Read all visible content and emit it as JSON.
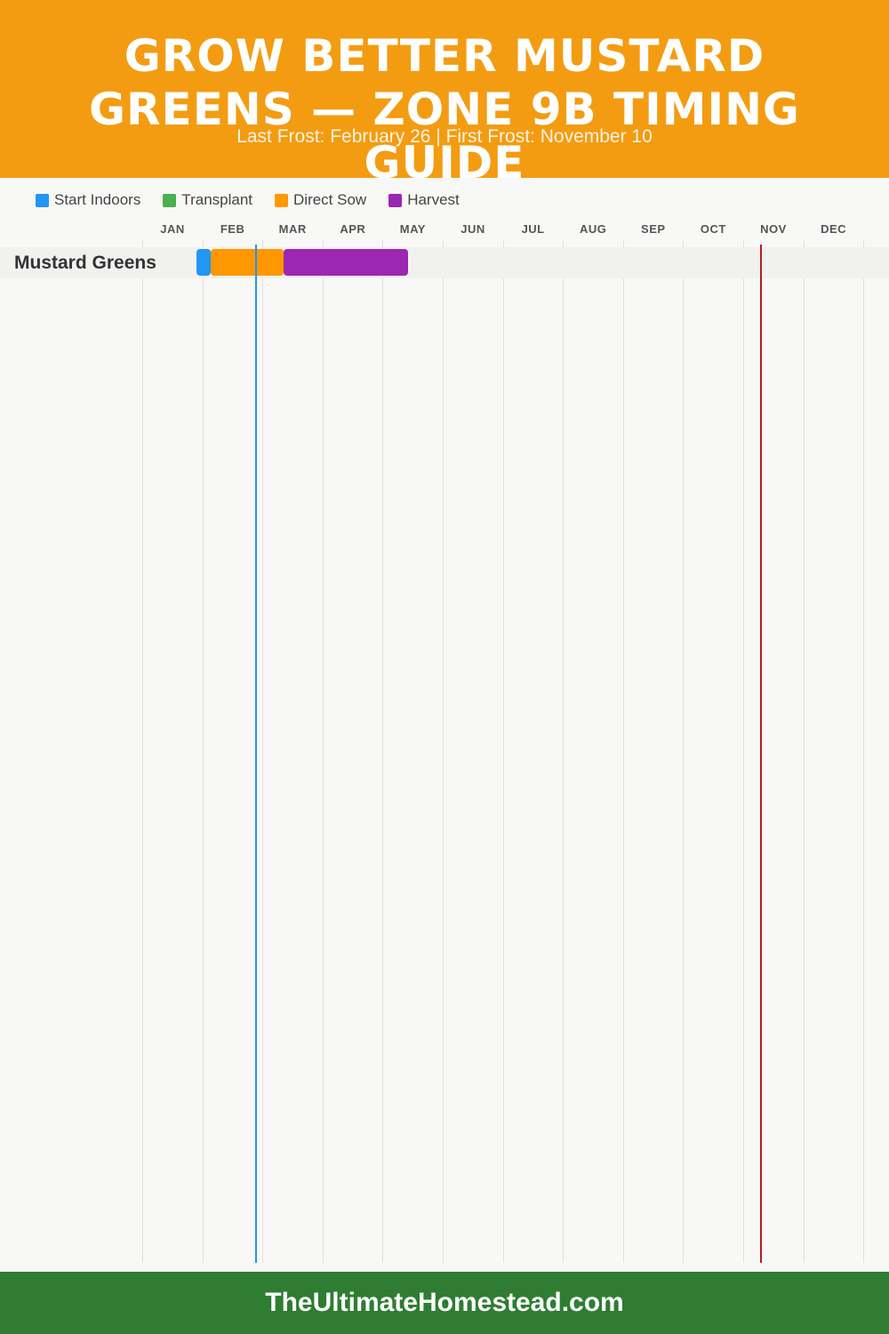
{
  "header": {
    "title": "GROW BETTER MUSTARD GREENS — ZONE 9B TIMING GUIDE",
    "subtitle": "Last Frost: February 26 | First Frost: November 10"
  },
  "footer": {
    "site": "TheUltimateHomestead.com"
  },
  "colors": {
    "header": "#f39c12",
    "footer": "#2e7d32",
    "start_indoors": "#2196f3",
    "transplant": "#4caf50",
    "direct_sow": "#ff9800",
    "harvest": "#9c27b0",
    "last_frost_line": "#2196f3",
    "first_frost_line": "#b71c1c"
  },
  "chart_data": {
    "type": "gantt",
    "months": [
      "JAN",
      "FEB",
      "MAR",
      "APR",
      "MAY",
      "JUN",
      "JUL",
      "AUG",
      "SEP",
      "OCT",
      "NOV",
      "DEC"
    ],
    "legend": [
      {
        "label": "Start Indoors",
        "color": "#2196f3"
      },
      {
        "label": "Transplant",
        "color": "#4caf50"
      },
      {
        "label": "Direct Sow",
        "color": "#ff9800"
      },
      {
        "label": "Harvest",
        "color": "#9c27b0"
      }
    ],
    "frost_dates": {
      "last_frost": {
        "month": 2,
        "day": 26
      },
      "first_frost": {
        "month": 11,
        "day": 10
      }
    },
    "crops": [
      {
        "name": "Mustard Greens",
        "phases": [
          {
            "phase": "Start Indoors",
            "start": {
              "month": 1,
              "day": 29
            },
            "end": {
              "month": 2,
              "day": 5
            }
          },
          {
            "phase": "Direct Sow",
            "start": {
              "month": 2,
              "day": 5
            },
            "end": {
              "month": 3,
              "day": 12
            }
          },
          {
            "phase": "Harvest",
            "start": {
              "month": 3,
              "day": 12
            },
            "end": {
              "month": 5,
              "day": 14
            }
          }
        ]
      }
    ]
  }
}
